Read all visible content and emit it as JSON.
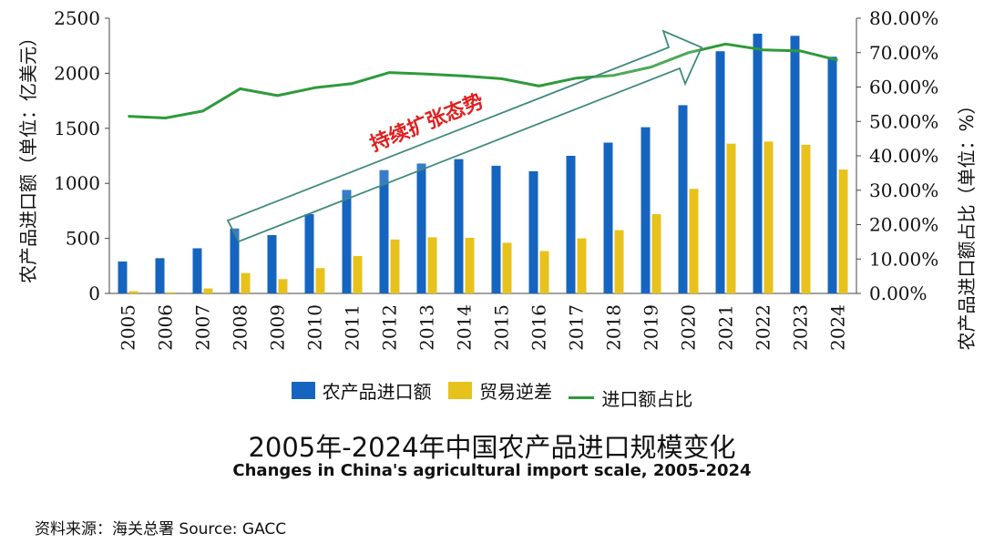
{
  "colors": {
    "import": "#1565C0",
    "deficit": "#E8C21C",
    "ratio": "#2E9A3A",
    "arrow": "#3E8A7C",
    "annotation": "#E02020"
  },
  "title": "2005年-2024年中国农产品进口规模变化",
  "subtitle": "Changes in China's agricultural import scale, 2005-2024",
  "source": "资料来源：海关总署  Source:  GACC",
  "legend": {
    "import": "农产品进口额",
    "deficit": "贸易逆差",
    "ratio": "进口额占比"
  },
  "chart_data": {
    "type": "bar",
    "categories": [
      "2005",
      "2006",
      "2007",
      "2008",
      "2009",
      "2010",
      "2011",
      "2012",
      "2013",
      "2014",
      "2015",
      "2016",
      "2017",
      "2018",
      "2019",
      "2020",
      "2021",
      "2022",
      "2023",
      "2024"
    ],
    "series": [
      {
        "name": "农产品进口额",
        "type": "bar",
        "axis": "left",
        "values": [
          290,
          320,
          410,
          590,
          530,
          720,
          940,
          1120,
          1180,
          1220,
          1160,
          1110,
          1250,
          1370,
          1510,
          1710,
          2200,
          2360,
          2340,
          2150
        ]
      },
      {
        "name": "贸易逆差",
        "type": "bar",
        "axis": "left",
        "values": [
          20,
          10,
          45,
          185,
          130,
          230,
          340,
          490,
          510,
          505,
          460,
          385,
          500,
          575,
          720,
          950,
          1360,
          1380,
          1350,
          1125
        ]
      },
      {
        "name": "进口额占比",
        "type": "line",
        "axis": "right",
        "values": [
          51.5,
          51.0,
          53.0,
          59.5,
          57.5,
          59.8,
          61.0,
          64.2,
          63.8,
          63.2,
          62.4,
          60.3,
          62.6,
          63.4,
          65.8,
          70.0,
          72.5,
          70.8,
          70.5,
          67.8
        ]
      }
    ],
    "ylabel_left": "农产品进口额（单位：亿美元）",
    "ylabel_right": "农产品进口额占比（单位：%）",
    "ylim_left": [
      0,
      2500
    ],
    "yticks_left": [
      "0",
      "500",
      "1000",
      "1500",
      "2000",
      "2500"
    ],
    "ylim_right": [
      0,
      80
    ],
    "yticks_right": [
      "0.00%",
      "10.00%",
      "20.00%",
      "30.00%",
      "40.00%",
      "50.00%",
      "60.00%",
      "70.00%",
      "80.00%"
    ],
    "annotation": "持续扩张态势"
  }
}
